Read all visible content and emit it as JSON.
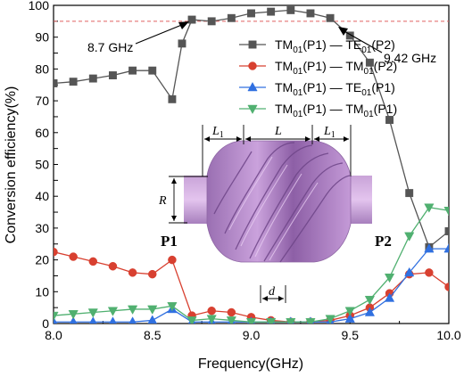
{
  "chart_data": {
    "type": "line",
    "title": "",
    "xlabel": "Frequency(GHz)",
    "ylabel": "Conversion efficiency(%)",
    "xlim": [
      8.0,
      10.0
    ],
    "ylim": [
      0,
      100
    ],
    "x_ticks": [
      "8.0",
      "8.5",
      "9.0",
      "9.5",
      "10.0"
    ],
    "y_ticks": [
      "0",
      "5",
      "10",
      "15",
      "20",
      "25",
      "30",
      "35",
      "40",
      "45",
      "50",
      "55",
      "60",
      "65",
      "70",
      "75",
      "80",
      "85",
      "90",
      "95",
      "100"
    ],
    "grid": false,
    "legend_position": "upper-right",
    "reference_line": {
      "y": 95,
      "color": "#e06060",
      "style": "dashed"
    },
    "annotations": [
      {
        "text": "8.7 GHz",
        "x": 8.63,
        "y": 95
      },
      {
        "text": "9.42 GHz",
        "x": 9.47,
        "y": 95
      }
    ],
    "inset_labels": {
      "L1_left": "L",
      "L": "L",
      "L1_right": "L",
      "sub1": "1",
      "R": "R",
      "d": "d",
      "port1": "P1",
      "port2": "P2"
    },
    "series": [
      {
        "label_main": "TM",
        "sub1": "01",
        "mid": "(P1) — TE",
        "sub2": "01",
        "tail": "(P2)",
        "color": "#555555",
        "marker": "square",
        "x": [
          8.0,
          8.1,
          8.2,
          8.3,
          8.4,
          8.5,
          8.6,
          8.65,
          8.7,
          8.8,
          8.9,
          9.0,
          9.1,
          9.2,
          9.3,
          9.4,
          9.5,
          9.6,
          9.7,
          9.8,
          9.9,
          10.0
        ],
        "y": [
          75.5,
          76.0,
          77.0,
          78.0,
          79.5,
          79.5,
          70.5,
          88.0,
          95.5,
          95.0,
          96.0,
          97.5,
          98.0,
          98.5,
          97.5,
          96.0,
          90.5,
          82.0,
          64.0,
          41.0,
          24.0,
          29.0
        ]
      },
      {
        "label_main": "TM",
        "sub1": "01",
        "mid": "(P1) — TM",
        "sub2": "01",
        "tail": "(P2)",
        "color": "#d84030",
        "marker": "circle",
        "x": [
          8.0,
          8.1,
          8.2,
          8.3,
          8.4,
          8.5,
          8.6,
          8.7,
          8.8,
          8.9,
          9.0,
          9.1,
          9.2,
          9.3,
          9.4,
          9.5,
          9.6,
          9.7,
          9.8,
          9.9,
          10.0
        ],
        "y": [
          22.5,
          21.0,
          19.5,
          18.0,
          16.0,
          15.5,
          20.0,
          2.5,
          4.0,
          3.5,
          2.0,
          1.0,
          0.5,
          0.5,
          1.0,
          2.5,
          5.0,
          9.5,
          15.5,
          16.0,
          11.5
        ]
      },
      {
        "label_main": "TM",
        "sub1": "01",
        "mid": "(P1) — TE",
        "sub2": "01",
        "tail": "(P1)",
        "color": "#3070e0",
        "marker": "triangle-up",
        "x": [
          8.0,
          8.1,
          8.2,
          8.3,
          8.4,
          8.5,
          8.6,
          8.7,
          8.8,
          8.9,
          9.0,
          9.1,
          9.2,
          9.3,
          9.4,
          9.5,
          9.6,
          9.7,
          9.8,
          9.9,
          10.0
        ],
        "y": [
          0.5,
          0.5,
          0.5,
          0.5,
          0.5,
          1.0,
          4.5,
          0.5,
          0.5,
          0.5,
          0.5,
          0.5,
          0.5,
          0.5,
          0.5,
          1.5,
          3.5,
          8.0,
          16.0,
          23.5,
          23.5
        ]
      },
      {
        "label_main": "TM",
        "sub1": "01",
        "mid": "(P1) — TM",
        "sub2": "01",
        "tail": "(P1)",
        "color": "#50b070",
        "marker": "triangle-down",
        "x": [
          8.0,
          8.1,
          8.2,
          8.3,
          8.4,
          8.5,
          8.6,
          8.7,
          8.8,
          8.9,
          9.0,
          9.1,
          9.2,
          9.3,
          9.4,
          9.5,
          9.6,
          9.7,
          9.8,
          9.9,
          10.0
        ],
        "y": [
          2.5,
          3.0,
          3.5,
          4.0,
          4.5,
          4.5,
          5.5,
          1.0,
          1.5,
          1.0,
          0.5,
          0.5,
          0.5,
          0.5,
          1.5,
          4.0,
          7.5,
          14.5,
          27.5,
          36.5,
          35.5
        ]
      }
    ]
  }
}
